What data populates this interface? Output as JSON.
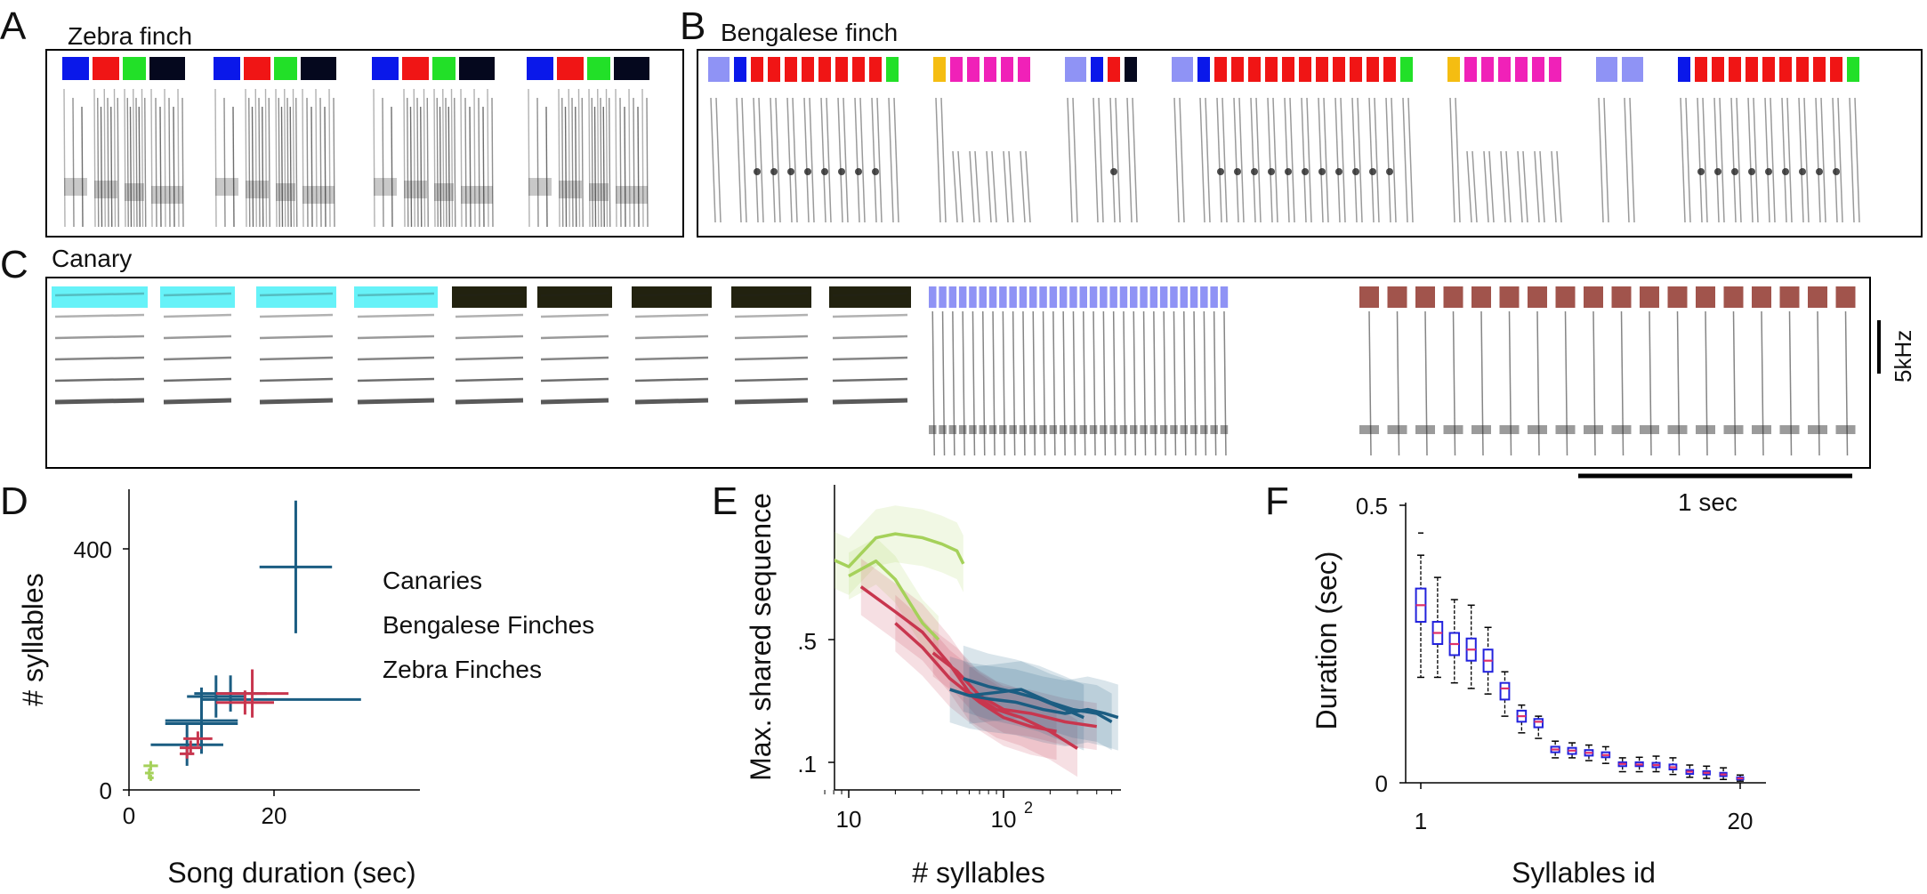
{
  "panels": {
    "A": {
      "letter": "A",
      "title": "Zebra finch"
    },
    "B": {
      "letter": "B",
      "title": "Bengalese finch"
    },
    "C": {
      "letter": "C",
      "title": "Canary"
    },
    "D": {
      "letter": "D"
    },
    "E": {
      "letter": "E"
    },
    "F": {
      "letter": "F"
    }
  },
  "scale_bars": {
    "freq_label": "5kHz",
    "time_label": "1  sec"
  },
  "colors": {
    "zebra": "#a5d15a",
    "bengalese": "#c8364e",
    "canary": "#1b5d82",
    "box_edge": "#2222dd",
    "box_median": "#e0306a",
    "spectro_ink": "#222222"
  },
  "syllable_bars": {
    "A": [
      "#0a18ea",
      "#f01515",
      "#22e028",
      "#05081e",
      "#0a18ea",
      "#f01515",
      "#22e028",
      "#05081e",
      "#0a18ea",
      "#f01515",
      "#22e028",
      "#05081e",
      "#0a18ea",
      "#f01515",
      "#22e028",
      "#05081e"
    ],
    "B": [
      "#8f93f5",
      "#0a18ea",
      "#f01515",
      "#f01515",
      "#f01515",
      "#f01515",
      "#f01515",
      "#f01515",
      "#f01515",
      "#f01515",
      "#22e028",
      "#f5bd12",
      "#f021b8",
      "#f021b8",
      "#f021b8",
      "#f021b8",
      "#f021b8",
      "#8f93f5",
      "#0a18ea",
      "#f01515",
      "#05081e",
      "#8f93f5",
      "#0a18ea",
      "#f01515",
      "#f01515",
      "#f01515",
      "#f01515",
      "#f01515",
      "#f01515",
      "#f01515",
      "#f01515",
      "#f01515",
      "#f01515",
      "#f01515",
      "#22e028",
      "#f5bd12",
      "#f021b8",
      "#f021b8",
      "#f021b8",
      "#f021b8",
      "#f021b8",
      "#f021b8",
      "#8f93f5",
      "#8f93f5",
      "#0a18ea",
      "#f01515",
      "#f01515",
      "#f01515",
      "#f01515",
      "#f01515",
      "#f01515",
      "#f01515",
      "#f01515",
      "#f01515",
      "#22e028"
    ],
    "C": {
      "cyan": "#66f2f8",
      "dark": "#22220f",
      "lavender": "#8f93f5",
      "brown": "#a1544c"
    }
  },
  "chart_data": [
    {
      "panel": "D",
      "type": "scatter",
      "title": "",
      "xlabel": "Song duration (sec)",
      "ylabel": "# syllables",
      "xlim": [
        0,
        40
      ],
      "ylim": [
        0,
        480
      ],
      "xticks": [
        "0",
        "20"
      ],
      "yticks": [
        "0",
        "400"
      ],
      "legend_placement": "right",
      "series": [
        {
          "name": "Canaries",
          "points": [
            {
              "x": 23,
              "y": 370,
              "xerr": 5,
              "yerr": 110
            },
            {
              "x": 21,
              "y": 150,
              "xerr": 11,
              "yerr": 0
            },
            {
              "x": 14,
              "y": 160,
              "xerr": 5,
              "yerr": 30
            },
            {
              "x": 12,
              "y": 155,
              "xerr": 4,
              "yerr": 35
            },
            {
              "x": 10,
              "y": 115,
              "xerr": 5,
              "yerr": 55
            },
            {
              "x": 10,
              "y": 110,
              "xerr": 5,
              "yerr": 0
            },
            {
              "x": 8,
              "y": 75,
              "xerr": 5,
              "yerr": 35
            }
          ]
        },
        {
          "name": "Bengalese Finches",
          "points": [
            {
              "x": 17,
              "y": 160,
              "xerr": 5,
              "yerr": 40
            },
            {
              "x": 16,
              "y": 145,
              "xerr": 4,
              "yerr": 20
            },
            {
              "x": 9.5,
              "y": 85,
              "xerr": 2,
              "yerr": 12
            },
            {
              "x": 8.5,
              "y": 70,
              "xerr": 1.5,
              "yerr": 12
            },
            {
              "x": 8,
              "y": 60,
              "xerr": 1,
              "yerr": 8
            }
          ]
        },
        {
          "name": "Zebra Finches",
          "points": [
            {
              "x": 3,
              "y": 40,
              "xerr": 1,
              "yerr": 8
            },
            {
              "x": 2.8,
              "y": 28,
              "xerr": 0.6,
              "yerr": 8
            },
            {
              "x": 3,
              "y": 20,
              "xerr": 0.4,
              "yerr": 5
            }
          ]
        }
      ]
    },
    {
      "panel": "E",
      "type": "line",
      "title": "",
      "xlabel": "# syllables",
      "ylabel": "Max. shared sequence",
      "xscale": "log",
      "yscale": "log",
      "xlim": [
        7,
        600
      ],
      "ylim": [
        0.07,
        2.5
      ],
      "xticks": [
        "10",
        "10",
        "2"
      ],
      "yticks": [
        ".1",
        ".5"
      ],
      "series": [
        {
          "group": "zebra",
          "x": [
            7,
            10,
            15,
            20,
            30,
            40,
            50,
            55
          ],
          "y": [
            1.5,
            1.3,
            1.9,
            2.0,
            1.9,
            1.75,
            1.6,
            1.35
          ],
          "band": 0.25
        },
        {
          "group": "zebra",
          "x": [
            10,
            15,
            20,
            25,
            30,
            38
          ],
          "y": [
            1.15,
            1.4,
            1.1,
            0.8,
            0.62,
            0.5
          ],
          "band": 0.2
        },
        {
          "group": "bengalese",
          "x": [
            12,
            20,
            30,
            45,
            60,
            90,
            130,
            200,
            300
          ],
          "y": [
            1.0,
            0.72,
            0.55,
            0.36,
            0.25,
            0.2,
            0.18,
            0.15,
            0.12
          ],
          "band": 0.25
        },
        {
          "group": "bengalese",
          "x": [
            20,
            30,
            45,
            70,
            100,
            150,
            220
          ],
          "y": [
            0.62,
            0.45,
            0.3,
            0.22,
            0.18,
            0.16,
            0.15
          ],
          "band": 0.25
        },
        {
          "group": "bengalese",
          "x": [
            35,
            50,
            70,
            100,
            150,
            250,
            400
          ],
          "y": [
            0.42,
            0.33,
            0.24,
            0.2,
            0.19,
            0.17,
            0.16
          ],
          "band": 0.2
        },
        {
          "group": "canary",
          "x": [
            45,
            60,
            80,
            120,
            180,
            250,
            350,
            450,
            550
          ],
          "y": [
            0.26,
            0.24,
            0.23,
            0.22,
            0.2,
            0.19,
            0.2,
            0.19,
            0.18
          ],
          "band": 0.3
        },
        {
          "group": "canary",
          "x": [
            55,
            80,
            120,
            170,
            250,
            330
          ],
          "y": [
            0.3,
            0.27,
            0.25,
            0.23,
            0.2,
            0.18
          ],
          "band": 0.3
        },
        {
          "group": "canary",
          "x": [
            60,
            90,
            130,
            200,
            280,
            400,
            500
          ],
          "y": [
            0.24,
            0.25,
            0.26,
            0.22,
            0.2,
            0.19,
            0.17
          ],
          "band": 0.25
        }
      ]
    },
    {
      "panel": "F",
      "type": "box",
      "title": "",
      "xlabel": "Syllables id",
      "ylabel": "Duration (sec)",
      "xlim": [
        0.6,
        20.6
      ],
      "ylim": [
        0,
        0.5
      ],
      "xticks": [
        "1",
        "20"
      ],
      "yticks": [
        "0",
        "0.5"
      ],
      "boxes": [
        {
          "id": 1,
          "min": 0.19,
          "q1": 0.29,
          "median": 0.32,
          "q3": 0.35,
          "max": 0.41,
          "outliers": [
            0.45
          ]
        },
        {
          "id": 2,
          "min": 0.19,
          "q1": 0.25,
          "median": 0.27,
          "q3": 0.29,
          "max": 0.37
        },
        {
          "id": 3,
          "min": 0.18,
          "q1": 0.23,
          "median": 0.25,
          "q3": 0.27,
          "max": 0.33
        },
        {
          "id": 4,
          "min": 0.17,
          "q1": 0.22,
          "median": 0.24,
          "q3": 0.26,
          "max": 0.32
        },
        {
          "id": 5,
          "min": 0.16,
          "q1": 0.2,
          "median": 0.22,
          "q3": 0.24,
          "max": 0.28
        },
        {
          "id": 6,
          "min": 0.12,
          "q1": 0.15,
          "median": 0.17,
          "q3": 0.18,
          "max": 0.2
        },
        {
          "id": 7,
          "min": 0.09,
          "q1": 0.11,
          "median": 0.12,
          "q3": 0.13,
          "max": 0.14
        },
        {
          "id": 8,
          "min": 0.08,
          "q1": 0.1,
          "median": 0.11,
          "q3": 0.115,
          "max": 0.12
        },
        {
          "id": 9,
          "min": 0.045,
          "q1": 0.055,
          "median": 0.06,
          "q3": 0.065,
          "max": 0.075
        },
        {
          "id": 10,
          "min": 0.045,
          "q1": 0.052,
          "median": 0.058,
          "q3": 0.063,
          "max": 0.072
        },
        {
          "id": 11,
          "min": 0.04,
          "q1": 0.049,
          "median": 0.054,
          "q3": 0.059,
          "max": 0.068
        },
        {
          "id": 12,
          "min": 0.035,
          "q1": 0.046,
          "median": 0.05,
          "q3": 0.055,
          "max": 0.065
        },
        {
          "id": 13,
          "min": 0.02,
          "q1": 0.03,
          "median": 0.034,
          "q3": 0.037,
          "max": 0.045
        },
        {
          "id": 14,
          "min": 0.02,
          "q1": 0.03,
          "median": 0.033,
          "q3": 0.037,
          "max": 0.046
        },
        {
          "id": 15,
          "min": 0.02,
          "q1": 0.028,
          "median": 0.032,
          "q3": 0.036,
          "max": 0.048
        },
        {
          "id": 16,
          "min": 0.015,
          "q1": 0.024,
          "median": 0.028,
          "q3": 0.033,
          "max": 0.045
        },
        {
          "id": 17,
          "min": 0.01,
          "q1": 0.016,
          "median": 0.02,
          "q3": 0.023,
          "max": 0.032
        },
        {
          "id": 18,
          "min": 0.008,
          "q1": 0.015,
          "median": 0.018,
          "q3": 0.021,
          "max": 0.03
        },
        {
          "id": 19,
          "min": 0.006,
          "q1": 0.012,
          "median": 0.015,
          "q3": 0.018,
          "max": 0.027
        },
        {
          "id": 20,
          "min": 0.003,
          "q1": 0.006,
          "median": 0.008,
          "q3": 0.01,
          "max": 0.014
        }
      ]
    }
  ]
}
